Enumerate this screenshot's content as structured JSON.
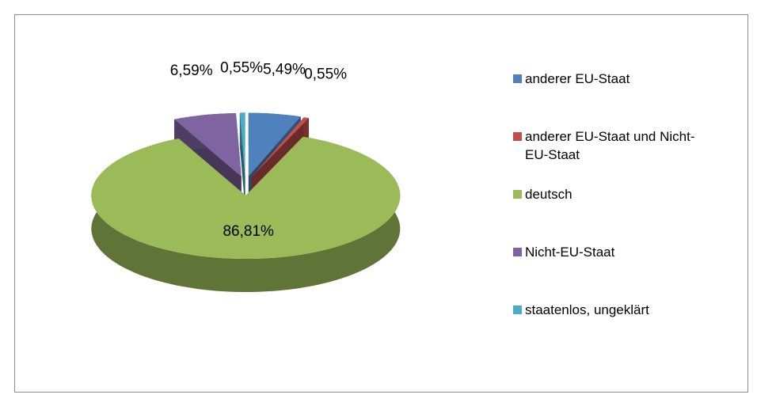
{
  "chart_data": {
    "type": "pie",
    "categories": [
      "anderer EU-Staat",
      "anderer EU-Staat und Nicht-EU-Staat",
      "deutsch",
      "Nicht-EU-Staat",
      "staatenlos, ungeklärt"
    ],
    "values": [
      5.49,
      0.55,
      86.81,
      6.59,
      0.55
    ],
    "value_labels": [
      "5,49%",
      "0,55%",
      "86,81%",
      "6,59%",
      "0,55%"
    ],
    "colors": [
      "#4f81bd",
      "#c0504d",
      "#9bbb59",
      "#8064a2",
      "#4bacc6"
    ]
  }
}
